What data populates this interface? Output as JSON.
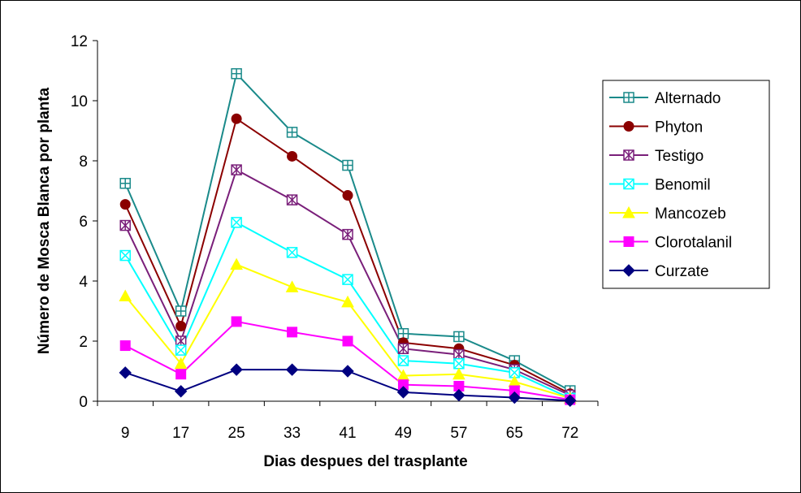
{
  "chart_data": {
    "type": "line",
    "title": "",
    "xlabel": "Dias despues del trasplante",
    "ylabel": "Número de Mosca Blanca por planta",
    "categories": [
      "9",
      "17",
      "25",
      "33",
      "41",
      "49",
      "57",
      "65",
      "72"
    ],
    "ylim": [
      0,
      12
    ],
    "yticks": [
      "0",
      "2",
      "4",
      "6",
      "8",
      "10",
      "12"
    ],
    "grid": false,
    "legend_position": "right",
    "series": [
      {
        "name": "Alternado",
        "color": "#1a8a8a",
        "marker": "square-cross",
        "values": [
          7.25,
          3.0,
          10.9,
          8.95,
          7.85,
          2.25,
          2.15,
          1.35,
          0.35
        ]
      },
      {
        "name": "Phyton",
        "color": "#8b0000",
        "marker": "circle",
        "values": [
          6.55,
          2.5,
          9.4,
          8.15,
          6.85,
          1.95,
          1.75,
          1.2,
          0.25
        ]
      },
      {
        "name": "Testigo",
        "color": "#7a1f7a",
        "marker": "star",
        "values": [
          5.85,
          2.0,
          7.7,
          6.7,
          5.55,
          1.75,
          1.55,
          1.05,
          0.2
        ]
      },
      {
        "name": "Benomil",
        "color": "#00ffff",
        "marker": "x",
        "values": [
          4.85,
          1.7,
          5.95,
          4.95,
          4.05,
          1.35,
          1.25,
          0.95,
          0.1
        ]
      },
      {
        "name": "Mancozeb",
        "color": "#ffff00",
        "marker": "triangle",
        "values": [
          3.5,
          1.25,
          4.55,
          3.8,
          3.3,
          0.85,
          0.9,
          0.65,
          0.1
        ]
      },
      {
        "name": "Clorotalanil",
        "color": "#ff00ff",
        "marker": "square",
        "values": [
          1.85,
          0.9,
          2.65,
          2.3,
          2.0,
          0.55,
          0.5,
          0.35,
          0.05
        ]
      },
      {
        "name": "Curzate",
        "color": "#000080",
        "marker": "diamond",
        "values": [
          0.95,
          0.33,
          1.05,
          1.05,
          1.0,
          0.3,
          0.2,
          0.12,
          0.02
        ]
      }
    ]
  }
}
